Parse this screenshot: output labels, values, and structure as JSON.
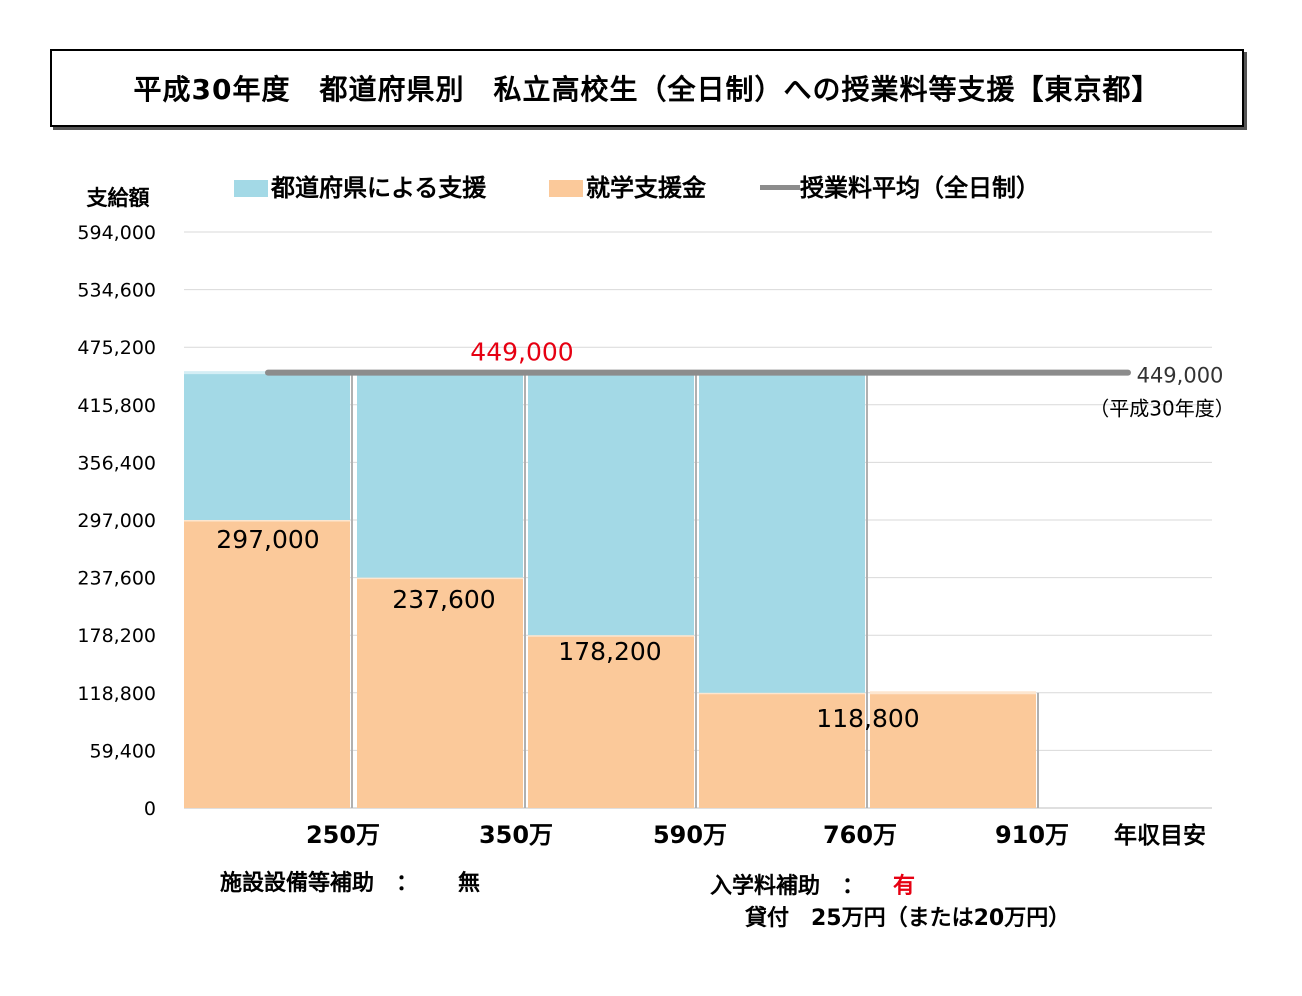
{
  "title": "平成30年度　都道府県別　私立高校生（全日制）への授業料等支援【東京都】",
  "chart_data": {
    "type": "bar",
    "ylabel": "支給額",
    "xlabel": "年収目安",
    "ylim": [
      0,
      594000
    ],
    "yticks": [
      "594,000",
      "534,600",
      "475,200",
      "415,800",
      "356,400",
      "297,000",
      "237,600",
      "178,200",
      "118,800",
      "59,400",
      "0"
    ],
    "categories": [
      "250万",
      "350万",
      "590万",
      "760万",
      "910万"
    ],
    "legend": {
      "placement": "top",
      "items": [
        {
          "name": "都道府県による支援",
          "color": "#a3d9e6",
          "kind": "bar"
        },
        {
          "name": "就学支援金",
          "color": "#fbc99a",
          "kind": "bar"
        },
        {
          "name": "授業料平均（全日制）",
          "color": "#8c8c8c",
          "kind": "line"
        }
      ]
    },
    "series": [
      {
        "name": "就学支援金",
        "values": [
          297000,
          237600,
          178200,
          118800,
          118800
        ],
        "color": "#fbc99a"
      },
      {
        "name": "都道府県による支援",
        "values": [
          152000,
          211400,
          270800,
          330200,
          0
        ],
        "color": "#a3d9e6"
      }
    ],
    "bar_labels": [
      "297,000",
      "237,600",
      "178,200",
      "118,800"
    ],
    "average": {
      "value": 449000,
      "label_top": "449,000",
      "label_right": "449,000",
      "label_sub": "（平成30年度）"
    }
  },
  "notes": {
    "facility_label": "施設設備等補助　：",
    "facility_value": "無",
    "admission_label": "入学料補助　：",
    "admission_value": "有",
    "loan": "貸付　25万円（または20万円）"
  },
  "colors": {
    "accent_red": "#e60012",
    "grid": "#d9d9d9",
    "avg_line": "#8c8c8c"
  }
}
